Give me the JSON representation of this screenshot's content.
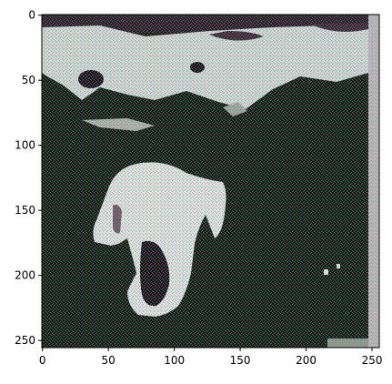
{
  "figure": {
    "x_axis": {
      "range": [
        0,
        256
      ],
      "ticks": [
        0,
        50,
        100,
        150,
        200,
        250
      ]
    },
    "y_axis": {
      "range": [
        0,
        256
      ],
      "inverted": true,
      "ticks": [
        0,
        50,
        100,
        150,
        200,
        250
      ]
    },
    "grid": false,
    "image": {
      "subject": "noisy low-resolution photo of a white horse on dark grass with a pale band of sky and trees at the top",
      "dominant_colors": [
        "#0f1a12",
        "#1f2a1c",
        "#d9ded8",
        "#b9c2c7",
        "#5a3d4a"
      ],
      "texture": "fine colored dither / checkerboard noise"
    }
  }
}
